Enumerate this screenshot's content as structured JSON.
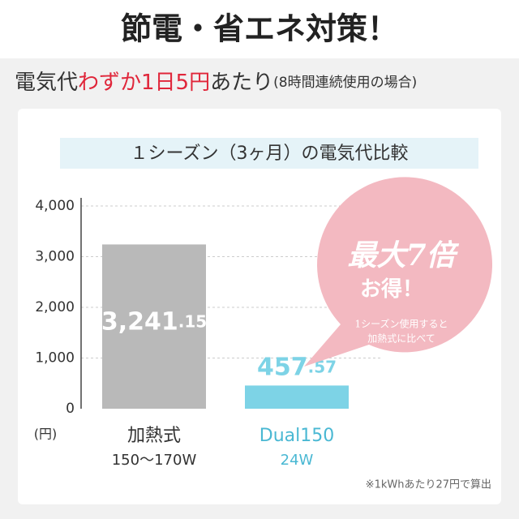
{
  "header": {
    "title": "節電・省エネ対策！",
    "subtitle_parts": [
      "電気代",
      "わずか1日5円",
      "あたり",
      "(8時間連続使用の場合)"
    ]
  },
  "chart_data": {
    "type": "bar",
    "title": "１シーズン（3ヶ月）の電気代比較",
    "y_unit": "(円)",
    "categories": [
      "加熱式",
      "Dual150"
    ],
    "category_sublabels": [
      "150〜170W",
      "24W"
    ],
    "values": [
      3241.15,
      457.57
    ],
    "value_labels": [
      "3,241.15",
      "457.57"
    ],
    "colors": [
      "#b9b9b9",
      "#7dd3e6"
    ],
    "ylim": [
      0,
      4000
    ],
    "yticks": [
      0,
      {
        "value": 1000,
        "label": "1,000"
      },
      {
        "value": 2000,
        "label": "2,000"
      },
      {
        "value": 3000,
        "label": "3,000"
      },
      {
        "value": 4000,
        "label": "4,000"
      }
    ],
    "grid": true,
    "callout": [
      "最大7倍",
      "お得！",
      "1シーズン使用すると",
      "加熱式に比べて"
    ],
    "note": "※1kWhあたり27円で算出"
  }
}
